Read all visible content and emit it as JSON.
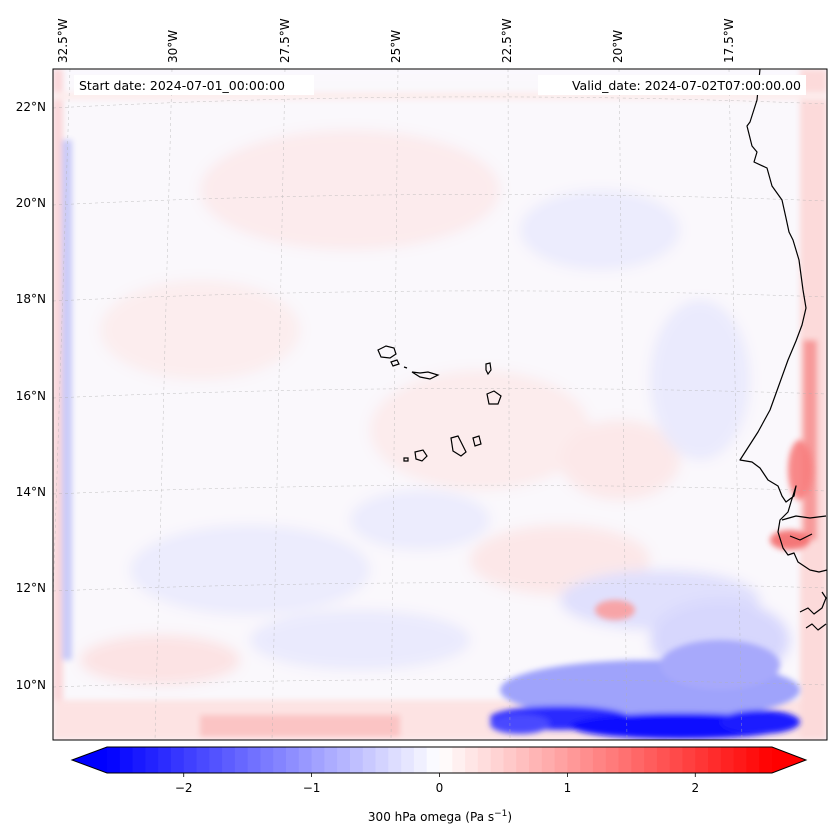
{
  "map": {
    "start_label": "Start date: 2024-07-01_00:00:00",
    "valid_label": "Valid_date: 2024-07-02T07:00:00.00",
    "lon_ticks": [
      "32.5°W",
      "30°W",
      "27.5°W",
      "25°W",
      "22.5°W",
      "20°W",
      "17.5°W"
    ],
    "lat_ticks": [
      "22°N",
      "20°N",
      "18°N",
      "16°N",
      "14°N",
      "12°N",
      "10°N"
    ],
    "gridlines": true,
    "colormap": "bwr"
  },
  "colorbar": {
    "ticks": [
      -2,
      -1,
      0,
      1,
      2
    ],
    "tick_labels": [
      "−2",
      "−1",
      "0",
      "1",
      "2"
    ],
    "vmin": -2.6,
    "vmax": 2.6,
    "label": "300 hPa omega (Pa s⁻¹)",
    "label_main": "300 hPa omega (Pa s",
    "label_exp": "−1",
    "label_end": ")",
    "min_color": "#0000ff",
    "mid_color": "#ffffff",
    "max_color": "#ff0000"
  }
}
